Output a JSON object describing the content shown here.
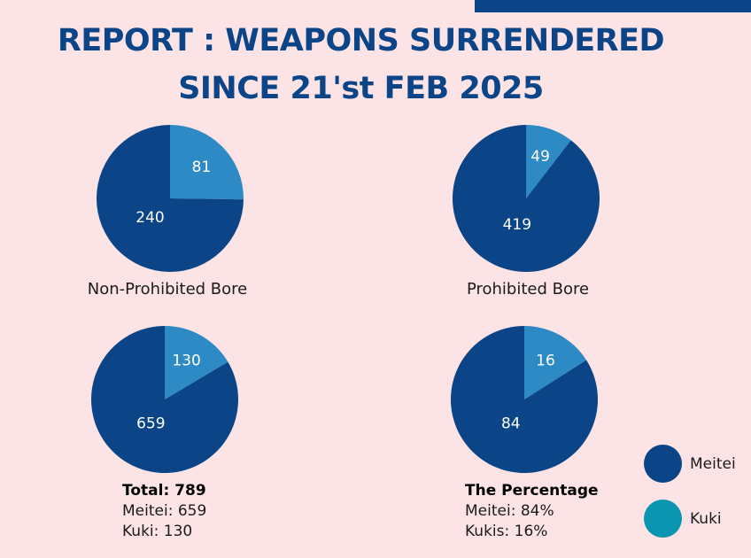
{
  "header": {
    "title_line1": "REPORT : WEAPONS SURRENDERED",
    "title_line2": "SINCE 21'st FEB 2025"
  },
  "colors": {
    "meitei": "#0b4587",
    "kuki_slice": "#2e8ac4",
    "kuki_legend": "#0a96b0"
  },
  "chart_data": [
    {
      "type": "pie",
      "title": "Non-Prohibited Bore",
      "categories": [
        "Kuki",
        "Meitei"
      ],
      "values": [
        81,
        240
      ],
      "labels": [
        "81",
        "240"
      ]
    },
    {
      "type": "pie",
      "title": "Prohibited Bore",
      "categories": [
        "Kuki",
        "Meitei"
      ],
      "values": [
        49,
        419
      ],
      "labels": [
        "49",
        "419"
      ]
    },
    {
      "type": "pie",
      "title": "",
      "categories": [
        "Kuki",
        "Meitei"
      ],
      "values": [
        130,
        659
      ],
      "labels": [
        "130",
        "659"
      ]
    },
    {
      "type": "pie",
      "title": "",
      "categories": [
        "Kuki",
        "Meitei"
      ],
      "values": [
        16,
        84
      ],
      "labels": [
        "16",
        "84"
      ]
    }
  ],
  "summary_total": {
    "heading": "Total: 789",
    "line1": "Meitei: 659",
    "line2": "Kuki: 130"
  },
  "summary_percentage": {
    "heading": "The Percentage",
    "line1": "Meitei: 84%",
    "line2": "Kukis: 16%"
  },
  "legend": [
    {
      "label": "Meitei"
    },
    {
      "label": "Kuki"
    }
  ]
}
